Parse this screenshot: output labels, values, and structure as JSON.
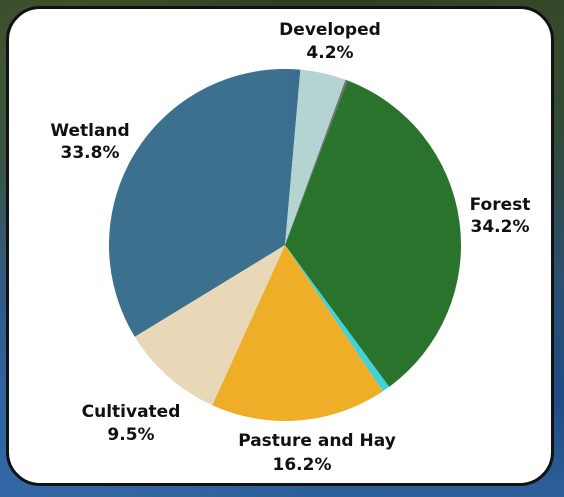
{
  "chart_data": {
    "type": "pie",
    "start_angle_deg": 0,
    "direction": "clockwise",
    "legend": "none",
    "slices": [
      {
        "category": "",
        "value": 1.4,
        "color": "#3a6f90",
        "label": "",
        "percent_label": ""
      },
      {
        "category": "Developed",
        "value": 4.2,
        "color": "#b3d4d0",
        "label": "Developed",
        "percent_label": "4.2%"
      },
      {
        "category": "",
        "value": 0.2,
        "color": "#6f6f6f",
        "label": "",
        "percent_label": ""
      },
      {
        "category": "Forest",
        "value": 34.2,
        "color": "#2a732d",
        "label": "Forest",
        "percent_label": "34.2%"
      },
      {
        "category": "",
        "value": 0.7,
        "color": "#41d2da",
        "label": "",
        "percent_label": ""
      },
      {
        "category": "Pasture and Hay",
        "value": 16.2,
        "color": "#eeae28",
        "label": "Pasture and Hay",
        "percent_label": "16.2%"
      },
      {
        "category": "Cultivated",
        "value": 9.5,
        "color": "#e9d8b7",
        "label": "Cultivated",
        "percent_label": "9.5%"
      },
      {
        "category": "Wetland",
        "value": 33.8,
        "color": "#3b708e",
        "label": "Wetland",
        "percent_label": "33.8%"
      }
    ]
  }
}
